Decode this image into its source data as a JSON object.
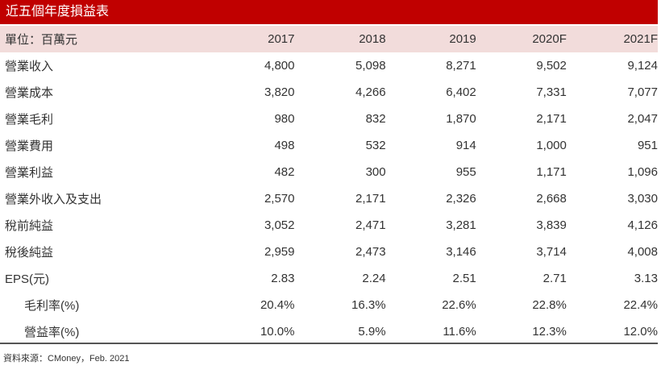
{
  "title": "近五個年度損益表",
  "header": {
    "unit": "單位：百萬元",
    "years": [
      "2017",
      "2018",
      "2019",
      "2020F",
      "2021F"
    ]
  },
  "rows": [
    {
      "label": "營業收入",
      "values": [
        "4,800",
        "5,098",
        "8,271",
        "9,502",
        "9,124"
      ]
    },
    {
      "label": "營業成本",
      "values": [
        "3,820",
        "4,266",
        "6,402",
        "7,331",
        "7,077"
      ]
    },
    {
      "label": "營業毛利",
      "values": [
        "980",
        "832",
        "1,870",
        "2,171",
        "2,047"
      ]
    },
    {
      "label": "營業費用",
      "values": [
        "498",
        "532",
        "914",
        "1,000",
        "951"
      ]
    },
    {
      "label": "營業利益",
      "values": [
        "482",
        "300",
        "955",
        "1,171",
        "1,096"
      ]
    },
    {
      "label": "營業外收入及支出",
      "values": [
        "2,570",
        "2,171",
        "2,326",
        "2,668",
        "3,030"
      ]
    },
    {
      "label": "稅前純益",
      "values": [
        "3,052",
        "2,471",
        "3,281",
        "3,839",
        "4,126"
      ]
    },
    {
      "label": "稅後純益",
      "values": [
        "2,959",
        "2,473",
        "3,146",
        "3,714",
        "4,008"
      ]
    },
    {
      "label": "EPS(元)",
      "values": [
        "2.83",
        "2.24",
        "2.51",
        "2.71",
        "3.13"
      ]
    },
    {
      "label": "毛利率(%)",
      "values": [
        "20.4%",
        "16.3%",
        "22.6%",
        "22.8%",
        "22.4%"
      ]
    },
    {
      "label": "營益率(%)",
      "values": [
        "10.0%",
        "5.9%",
        "11.6%",
        "12.3%",
        "12.0%"
      ]
    }
  ],
  "source": "資料來源：CMoney，Feb. 2021",
  "colors": {
    "title_bg": "#c00000",
    "header_bg": "#f2dcdb"
  }
}
